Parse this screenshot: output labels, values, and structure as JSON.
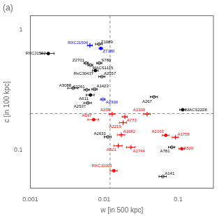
{
  "chart_data": {
    "type": "scatter",
    "title": "(a)",
    "xlabel": "w [in 500 kpc]",
    "ylabel": "c [in 100 kpc]",
    "log": true,
    "grid": false,
    "xlim": [
      0.001,
      0.3
    ],
    "ylim": [
      0.048,
      1.3
    ],
    "xticks": [
      0.001,
      0.01,
      0.1
    ],
    "yticks": [
      0.1,
      1
    ],
    "xline": 0.012,
    "yline": 0.2,
    "points": [
      {
        "name": "RXCJ1532",
        "x": 0.00175,
        "y": 0.63,
        "xerr": 0.00035,
        "color": "black",
        "marker": "circle"
      },
      {
        "name": "RXCJ1504",
        "x": 0.0064,
        "y": 0.735,
        "xerr": 0.0005,
        "color": "blue",
        "marker": "plus"
      },
      {
        "name": "Z1089",
        "x": 0.0085,
        "y": 0.755,
        "xerr": 0.0009,
        "color": "black",
        "marker": "open_circle"
      },
      {
        "name": "Z7180",
        "x": 0.009,
        "y": 0.695,
        "xerr": 0.0005,
        "color": "blue",
        "marker": "circle"
      },
      {
        "name": "Z2701",
        "x": 0.0057,
        "y": 0.525,
        "xerr": 0.0004,
        "color": "black",
        "marker": "open_circle"
      },
      {
        "name": "MACS1115",
        "x": 0.0065,
        "y": 0.505,
        "xerr": 0.0005,
        "color": "black",
        "marker": "open_circle"
      },
      {
        "name": "S780",
        "x": 0.0086,
        "y": 0.525,
        "xerr": 0.0007,
        "color": "black",
        "marker": "open_circle"
      },
      {
        "name": "RxC30437",
        "x": 0.0076,
        "y": 0.455,
        "xerr": 0.0007,
        "color": "black",
        "marker": "circle"
      },
      {
        "name": "A2557",
        "x": 0.0093,
        "y": 0.405,
        "xerr": 0.0009,
        "color": "black",
        "marker": "open_circle"
      },
      {
        "name": "A3088",
        "x": 0.0038,
        "y": 0.325,
        "xerr": 0.0006,
        "color": "black",
        "marker": "open_circle"
      },
      {
        "name": "A2261",
        "x": 0.0058,
        "y": 0.315,
        "xerr": 0.0005,
        "color": "black",
        "marker": "open_circle"
      },
      {
        "name": "A1423",
        "x": 0.0074,
        "y": 0.318,
        "xerr": 0.0006,
        "color": "black",
        "marker": "open_circle"
      },
      {
        "name": "A611",
        "x": 0.0065,
        "y": 0.285,
        "xerr": 0.0008,
        "color": "black",
        "marker": "circle"
      },
      {
        "name": "A2537",
        "x": 0.006,
        "y": 0.245,
        "xerr": 0.0007,
        "color": "black",
        "marker": "open_circle"
      },
      {
        "name": "A2390",
        "x": 0.0096,
        "y": 0.262,
        "xerr": 0.0007,
        "color": "blue",
        "marker": "open_circle"
      },
      {
        "name": "A267",
        "x": 0.047,
        "y": 0.275,
        "xerr": 0.005,
        "color": "black",
        "marker": "open_circle"
      },
      {
        "name": "MACS2228",
        "x": 0.115,
        "y": 0.215,
        "xerr": 0.01,
        "color": "black",
        "marker": "circle"
      },
      {
        "name": "A697",
        "x": 0.0072,
        "y": 0.178,
        "xerr": 0.0012,
        "color": "red",
        "marker": "circle"
      },
      {
        "name": "A209",
        "x": 0.0128,
        "y": 0.198,
        "xerr": 0.0012,
        "color": "red",
        "marker": "plus"
      },
      {
        "name": "A773",
        "x": 0.019,
        "y": 0.188,
        "xerr": 0.0015,
        "color": "red",
        "marker": "plus"
      },
      {
        "name": "A1300",
        "x": 0.038,
        "y": 0.198,
        "xerr": 0.004,
        "color": "red",
        "marker": "plus"
      },
      {
        "name": "A2219",
        "x": 0.018,
        "y": 0.168,
        "xerr": 0.002,
        "color": "red",
        "marker": "plus"
      },
      {
        "name": "A1682",
        "x": 0.017,
        "y": 0.133,
        "xerr": 0.002,
        "color": "red",
        "marker": "plus"
      },
      {
        "name": "A2631",
        "x": 0.0112,
        "y": 0.128,
        "xerr": 0.0012,
        "color": "black",
        "marker": "open_circle"
      },
      {
        "name": "A521",
        "x": 0.0155,
        "y": 0.108,
        "xerr": 0.002,
        "color": "red",
        "marker": "plus"
      },
      {
        "name": "A2744",
        "x": 0.023,
        "y": 0.105,
        "xerr": 0.003,
        "color": "red",
        "marker": "plus"
      },
      {
        "name": "A2163",
        "x": 0.068,
        "y": 0.132,
        "xerr": 0.007,
        "color": "red",
        "marker": "circle"
      },
      {
        "name": "A1758",
        "x": 0.092,
        "y": 0.127,
        "xerr": 0.009,
        "color": "red",
        "marker": "plus"
      },
      {
        "name": "A781",
        "x": 0.082,
        "y": 0.105,
        "xerr": 0.008,
        "color": "black",
        "marker": "open_circle"
      },
      {
        "name": "A520",
        "x": 0.112,
        "y": 0.102,
        "xerr": 0.01,
        "color": "red",
        "marker": "circle"
      },
      {
        "name": "RXCJ2003",
        "x": 0.0135,
        "y": 0.067,
        "xerr": 0.0015,
        "color": "red",
        "marker": "circle"
      },
      {
        "name": "A141",
        "x": 0.062,
        "y": 0.06,
        "xerr": 0.007,
        "color": "black",
        "marker": "open_circle"
      }
    ]
  }
}
